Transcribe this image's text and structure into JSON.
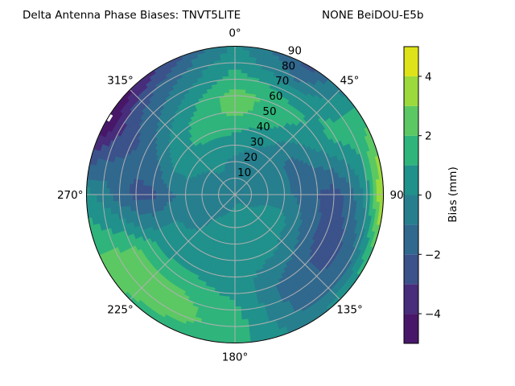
{
  "chart_data": {
    "type": "heatmap",
    "subtype": "polar-filled-contour",
    "title_left": "Delta Antenna Phase Biases: TNVT5LITE",
    "title_right": "NONE BeiDOU-E5b",
    "angular_tick_labels": [
      "0°",
      "45°",
      "90",
      "135°",
      "180°",
      "225°",
      "270°",
      "315°"
    ],
    "angular_ticks_deg": [
      0,
      45,
      90,
      135,
      180,
      225,
      270,
      315
    ],
    "angular_direction": "clockwise",
    "zero_location": "top",
    "radial_ticks": [
      10,
      20,
      30,
      40,
      50,
      60,
      70,
      80,
      90
    ],
    "radial_tick_labels": [
      "10",
      "20",
      "30",
      "40",
      "50",
      "60",
      "70",
      "80",
      "90"
    ],
    "rlim": [
      0,
      90
    ],
    "grid": true,
    "colorbar": {
      "label": "Bias (mm)",
      "range": [
        -5,
        5
      ],
      "levels": [
        -5,
        -4,
        -3,
        -2,
        -1,
        0,
        1,
        2,
        3,
        4,
        5
      ],
      "ticks": [
        -4,
        -2,
        0,
        2,
        4
      ],
      "tick_labels": [
        "−4",
        "−2",
        "0",
        "2",
        "4"
      ],
      "colormap": "viridis",
      "colors": [
        "#481769",
        "#472d7b",
        "#3b528b",
        "#31688e",
        "#277f8e",
        "#21918c",
        "#2fb47c",
        "#5cc863",
        "#9bd93c",
        "#dde318"
      ]
    },
    "grid_azimuth_deg": [
      0,
      30,
      60,
      90,
      120,
      150,
      180,
      210,
      240,
      270,
      300,
      330
    ],
    "grid_radius": [
      0,
      10,
      20,
      30,
      40,
      50,
      60,
      70,
      80,
      90
    ],
    "bias_mm": [
      [
        -0.5,
        -0.5,
        -0.3,
        0.5,
        1.2,
        2.3,
        2.5,
        1.5,
        0.8,
        0.3
      ],
      [
        -0.5,
        -0.5,
        -0.5,
        -0.3,
        0.5,
        1.3,
        1.5,
        0.5,
        -1.3,
        -2.3
      ],
      [
        -0.5,
        -0.5,
        -0.5,
        -0.8,
        -1.3,
        -0.5,
        0.5,
        1.3,
        1.5,
        1.8
      ],
      [
        -0.5,
        -0.5,
        -0.5,
        -0.7,
        -1.3,
        -2.0,
        -2.5,
        -1.5,
        0.5,
        4.5
      ],
      [
        -0.5,
        -0.3,
        0.3,
        0.5,
        -0.5,
        -1.5,
        -2.5,
        -2.3,
        -1.3,
        1.5
      ],
      [
        -0.5,
        0.3,
        0.5,
        0.5,
        0.3,
        -0.5,
        -1.3,
        -1.5,
        -1.2,
        -0.5
      ],
      [
        -0.5,
        0.3,
        0.5,
        0.5,
        0.5,
        0.5,
        0.7,
        1.3,
        1.5,
        1.3
      ],
      [
        -0.5,
        -0.3,
        0.3,
        0.5,
        0.5,
        0.7,
        1.5,
        2.3,
        2.5,
        1.5
      ],
      [
        -0.5,
        -0.5,
        -0.5,
        -0.5,
        0.3,
        0.5,
        1.3,
        2.3,
        2.5,
        2.3
      ],
      [
        -0.5,
        -0.5,
        -0.5,
        -0.5,
        -1.3,
        -2.3,
        -2.3,
        -1.5,
        -0.5,
        0.5
      ],
      [
        -0.5,
        -0.5,
        -0.3,
        0.3,
        0.5,
        -0.5,
        -1.5,
        -2.3,
        -3.3,
        -5.5
      ],
      [
        -0.5,
        -0.3,
        0.3,
        0.5,
        1.3,
        1.2,
        0.5,
        -0.5,
        -1.5,
        -3.0
      ]
    ]
  }
}
